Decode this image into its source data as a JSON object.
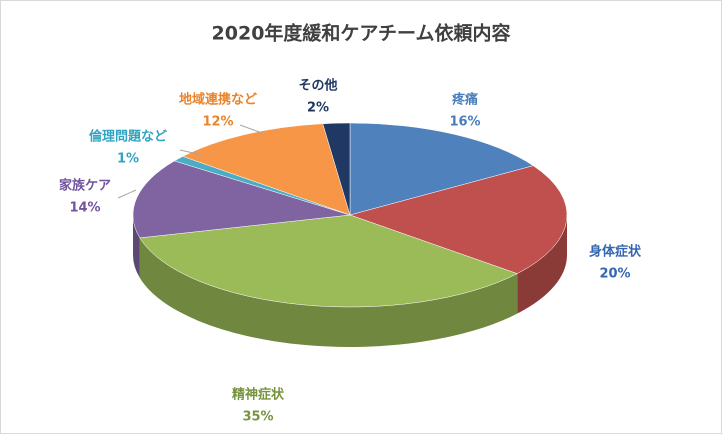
{
  "chart_data": {
    "type": "pie3d",
    "title": "2020年度緩和ケアチーム依頼内容",
    "categories": [
      "疼痛",
      "身体症状",
      "精神症状",
      "家族ケア",
      "倫理問題など",
      "地域連携など",
      "その他"
    ],
    "values": [
      16,
      20,
      35,
      14,
      1,
      12,
      2
    ],
    "value_labels": [
      "16%",
      "20%",
      "35%",
      "14%",
      "1%",
      "12%",
      "2%"
    ],
    "colors": [
      "#4f81bd",
      "#c0504d",
      "#9bbb59",
      "#8064a2",
      "#4bacc6",
      "#f79646",
      "#1f3864"
    ],
    "label_colors": [
      "#4a7ebb",
      "#3366b0",
      "#77933c",
      "#7153a0",
      "#31a4c4",
      "#e8842c",
      "#1f3864"
    ]
  }
}
